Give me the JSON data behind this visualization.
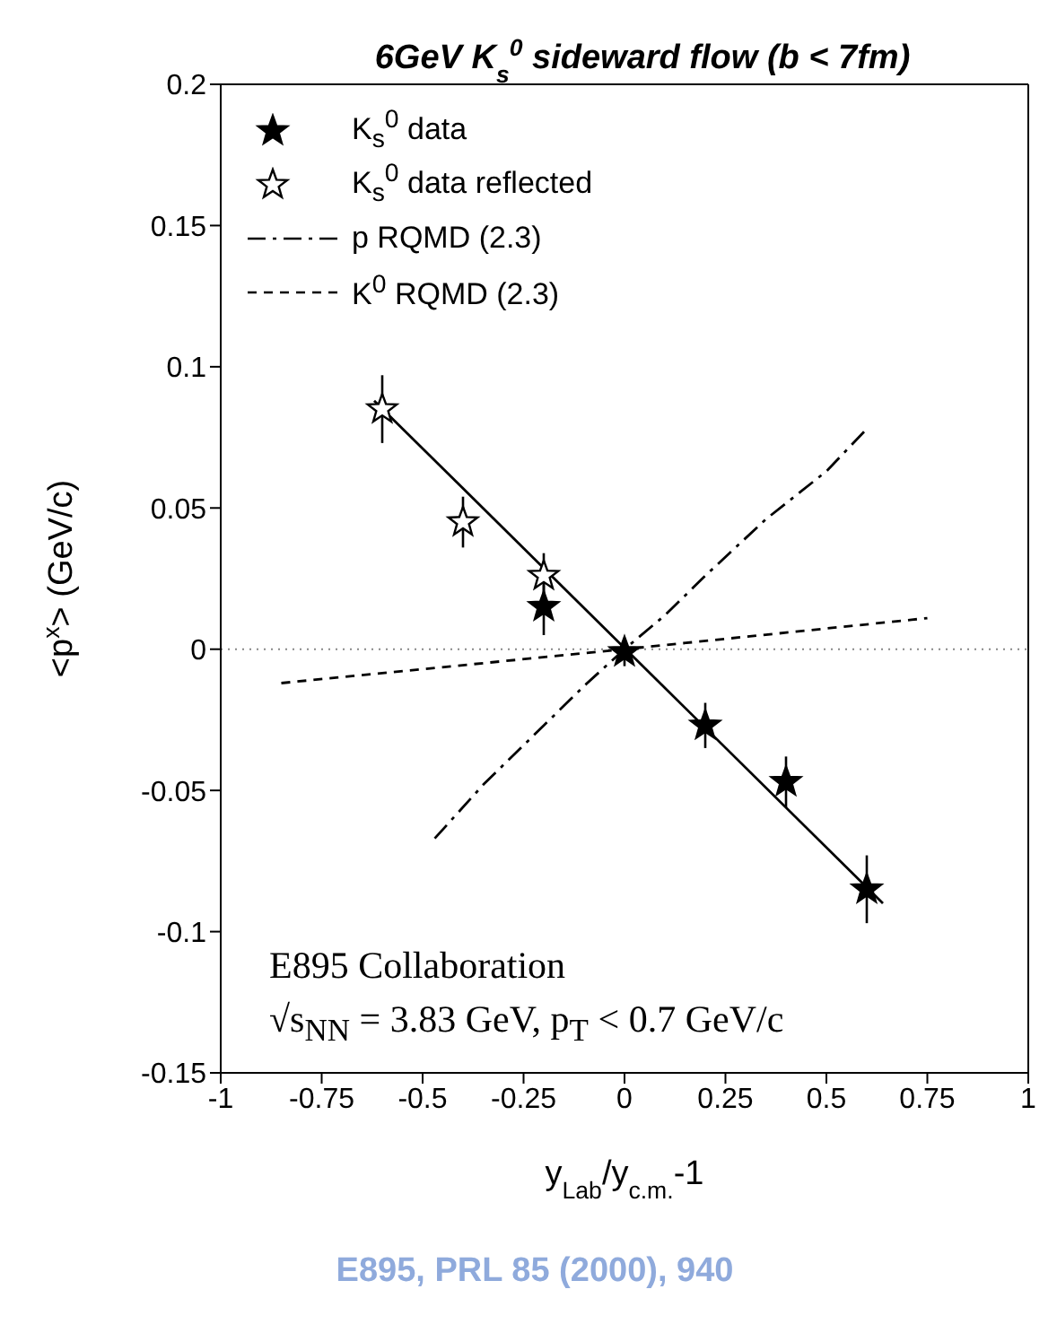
{
  "chart_data": {
    "type": "scatter",
    "title": "6GeV K$_{s}$$^{0}$ sideward flow (b < 7fm)",
    "xlabel": "y$_{Lab}$/y$_{c.m.}$-1",
    "ylabel": "<p$^{x}$> (GeV/c)",
    "xlim": [
      -1,
      1
    ],
    "xticks": [
      -1,
      -0.75,
      -0.5,
      -0.25,
      0,
      0.25,
      0.5,
      0.75,
      1
    ],
    "ylim": [
      -0.15,
      0.2
    ],
    "yticks": [
      -0.15,
      -0.1,
      -0.05,
      0,
      0.05,
      0.1,
      0.15,
      0.2
    ],
    "legend": "top left",
    "grid": false,
    "series": [
      {
        "name": "K$_{s}$$^{0}$ data",
        "marker": "star",
        "color": "#000000",
        "x": [
          -0.2,
          0,
          0.2,
          0.4,
          0.6
        ],
        "values": [
          0.015,
          -0.001,
          -0.027,
          -0.047,
          -0.085
        ],
        "errors": [
          0.01,
          0.005,
          0.008,
          0.009,
          0.012
        ]
      },
      {
        "name": "K$_{s}$$^{0}$ data reflected",
        "marker": "star",
        "color": "#ffffff",
        "x": [
          -0.6,
          -0.4,
          -0.2
        ],
        "values": [
          0.085,
          0.045,
          0.026
        ],
        "errors": [
          0.012,
          0.009,
          0.008
        ]
      },
      {
        "name": "p RQMD (2.3)",
        "type": "line",
        "line_style": "dashdot",
        "color": "#000000",
        "x": [
          -0.47,
          -0.35,
          -0.2,
          -0.1,
          0,
          0.1,
          0.2,
          0.35,
          0.5,
          0.6
        ],
        "values": [
          -0.067,
          -0.048,
          -0.027,
          -0.013,
          0,
          0.012,
          0.026,
          0.046,
          0.063,
          0.078
        ]
      },
      {
        "name": "K$^{0}$ RQMD (2.3)",
        "type": "line",
        "line_style": "dashed",
        "color": "#000000",
        "x": [
          -0.85,
          0,
          0.75
        ],
        "values": [
          -0.012,
          0,
          0.011
        ]
      },
      {
        "type": "line",
        "line_style": "solid",
        "color": "#000000",
        "x": [
          -0.62,
          0.64
        ],
        "values": [
          0.088,
          -0.09
        ]
      }
    ],
    "ref_lines": [
      {
        "axis": "y",
        "value": 0,
        "color": "#888888",
        "line_style": "dotted"
      }
    ],
    "annotations": [
      "E895 Collaboration",
      "√s$_{NN}$ = 3.83 GeV, p$_{T}$ < 0.7 GeV/c",
      "E895, PRL 85 (2000), 940"
    ]
  }
}
